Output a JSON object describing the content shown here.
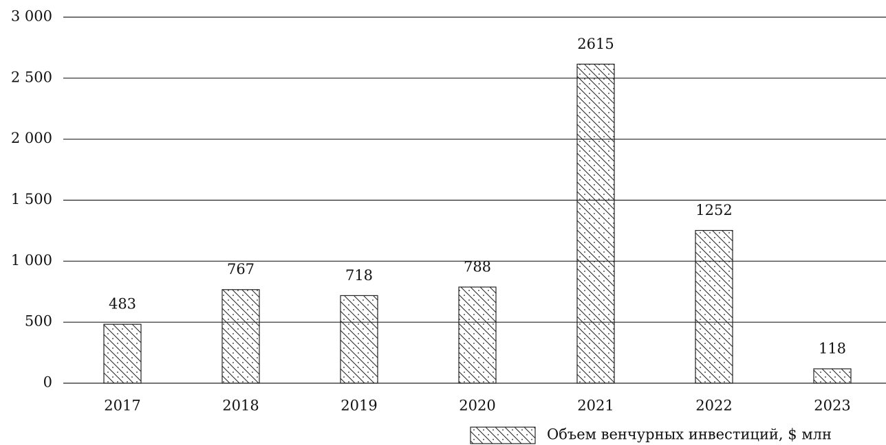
{
  "chart_data": {
    "type": "bar",
    "categories": [
      "2017",
      "2018",
      "2019",
      "2020",
      "2021",
      "2022",
      "2023"
    ],
    "series": [
      {
        "name": "Объем венчурных инвестиций, $ млн",
        "color": "#222222",
        "values": [
          483,
          767,
          718,
          788,
          2615,
          1252,
          118
        ]
      }
    ],
    "ylim": [
      0,
      3000
    ],
    "yticks": [
      0,
      500,
      {
        "value": 1000,
        "label": "1 000"
      },
      {
        "value": 1500,
        "label": "1 500"
      },
      {
        "value": 2000,
        "label": "2 000"
      },
      {
        "value": 2500,
        "label": "2 500"
      },
      {
        "value": 3000,
        "label": "3 000"
      }
    ],
    "grid": true,
    "legend": "bottom-right"
  }
}
